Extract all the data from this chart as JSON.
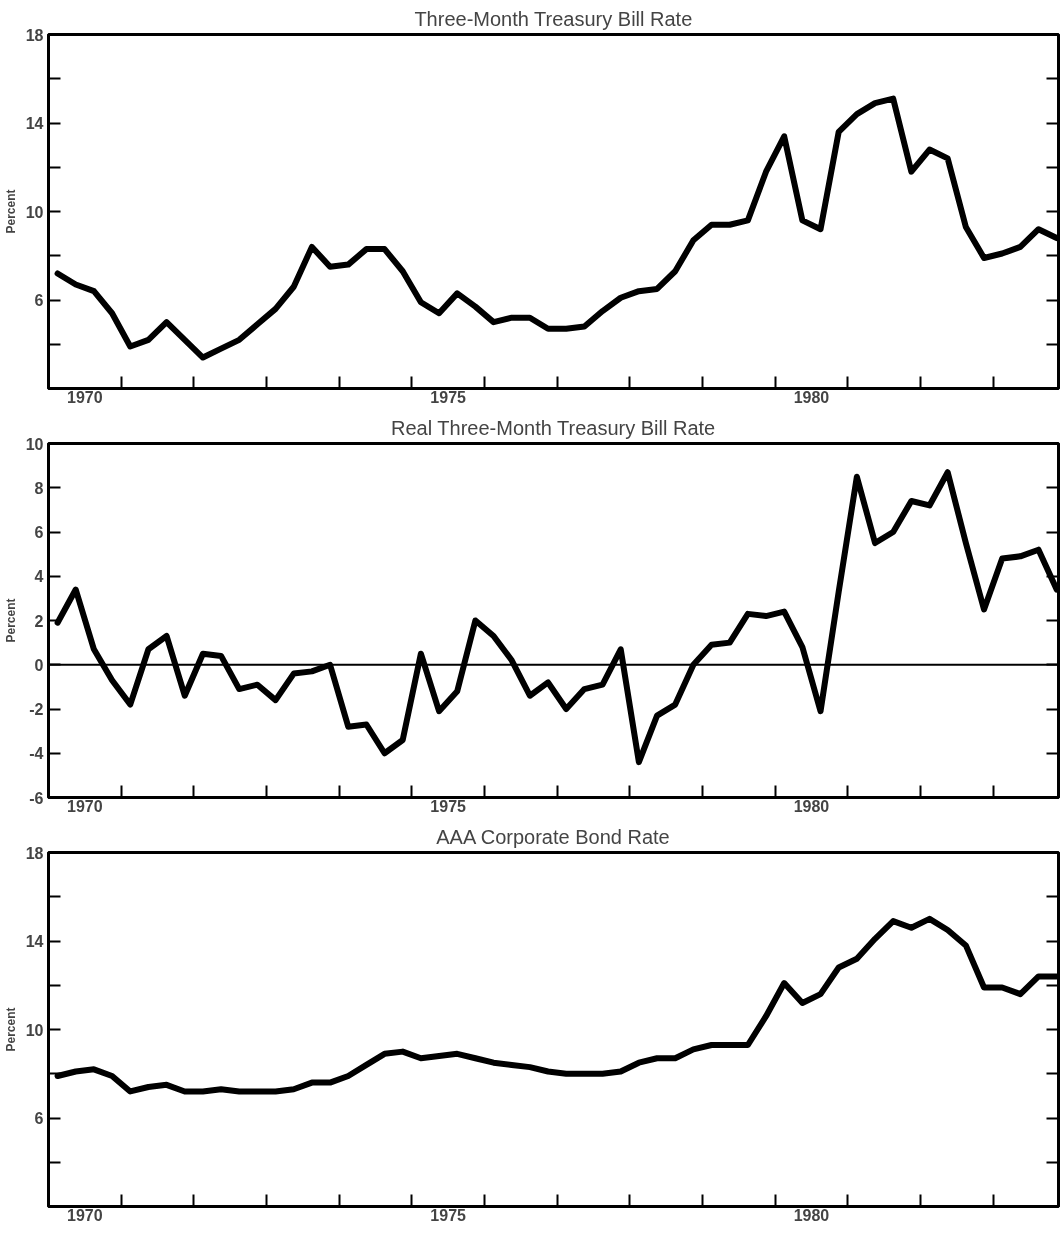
{
  "chart_data": [
    {
      "type": "line",
      "title": "Three-Month Treasury Bill Rate",
      "ylabel": "Percent",
      "x": [
        1970.125,
        1970.375,
        1970.625,
        1970.875,
        1971.125,
        1971.375,
        1971.625,
        1971.875,
        1972.125,
        1972.375,
        1972.625,
        1972.875,
        1973.125,
        1973.375,
        1973.625,
        1973.875,
        1974.125,
        1974.375,
        1974.625,
        1974.875,
        1975.125,
        1975.375,
        1975.625,
        1975.875,
        1976.125,
        1976.375,
        1976.625,
        1976.875,
        1977.125,
        1977.375,
        1977.625,
        1977.875,
        1978.125,
        1978.375,
        1978.625,
        1978.875,
        1979.125,
        1979.375,
        1979.625,
        1979.875,
        1980.125,
        1980.375,
        1980.625,
        1980.875,
        1981.125,
        1981.375,
        1981.625,
        1981.875,
        1982.125,
        1982.375,
        1982.625,
        1982.875,
        1983.125,
        1983.375,
        1983.625,
        1983.875
      ],
      "series": [
        {
          "color": "#000000",
          "values": [
            7.2,
            6.7,
            6.4,
            5.4,
            3.9,
            4.2,
            5.0,
            4.2,
            3.4,
            3.8,
            4.2,
            4.9,
            5.6,
            6.6,
            8.4,
            7.5,
            7.6,
            8.3,
            8.3,
            7.3,
            5.9,
            5.4,
            6.3,
            5.7,
            5.0,
            5.2,
            5.2,
            4.7,
            4.7,
            4.8,
            5.5,
            6.1,
            6.4,
            6.5,
            7.3,
            8.7,
            9.4,
            9.4,
            9.6,
            11.8,
            13.4,
            9.6,
            9.2,
            13.6,
            14.4,
            14.9,
            15.1,
            11.8,
            12.8,
            12.4,
            9.3,
            7.9,
            8.1,
            8.4,
            9.2,
            8.8
          ]
        }
      ],
      "xlim": [
        1970,
        1983.9
      ],
      "xticks": [
        {
          "value": 1970.5,
          "label": "1970"
        },
        {
          "value": 1971,
          "label": null
        },
        {
          "value": 1972,
          "label": null
        },
        {
          "value": 1973,
          "label": null
        },
        {
          "value": 1974,
          "label": null
        },
        {
          "value": 1975,
          "label": null
        },
        {
          "value": 1975.5,
          "label": "1975"
        },
        {
          "value": 1976,
          "label": null
        },
        {
          "value": 1977,
          "label": null
        },
        {
          "value": 1978,
          "label": null
        },
        {
          "value": 1979,
          "label": null
        },
        {
          "value": 1980,
          "label": null
        },
        {
          "value": 1980.5,
          "label": "1980"
        },
        {
          "value": 1981,
          "label": null
        },
        {
          "value": 1982,
          "label": null
        },
        {
          "value": 1983,
          "label": null
        }
      ],
      "ylim": [
        2,
        18
      ],
      "yticks": [
        {
          "value": 4,
          "label": null
        },
        6,
        {
          "value": 8,
          "label": null
        },
        10,
        {
          "value": 12,
          "label": null
        },
        14,
        {
          "value": 16,
          "label": null
        },
        18
      ]
    },
    {
      "type": "line",
      "title": "Real Three-Month Treasury Bill Rate",
      "ylabel": "Percent",
      "x": [
        1970.125,
        1970.375,
        1970.625,
        1970.875,
        1971.125,
        1971.375,
        1971.625,
        1971.875,
        1972.125,
        1972.375,
        1972.625,
        1972.875,
        1973.125,
        1973.375,
        1973.625,
        1973.875,
        1974.125,
        1974.375,
        1974.625,
        1974.875,
        1975.125,
        1975.375,
        1975.625,
        1975.875,
        1976.125,
        1976.375,
        1976.625,
        1976.875,
        1977.125,
        1977.375,
        1977.625,
        1977.875,
        1978.125,
        1978.375,
        1978.625,
        1978.875,
        1979.125,
        1979.375,
        1979.625,
        1979.875,
        1980.125,
        1980.375,
        1980.625,
        1980.875,
        1981.125,
        1981.375,
        1981.625,
        1981.875,
        1982.125,
        1982.375,
        1982.625,
        1982.875,
        1983.125,
        1983.375,
        1983.625,
        1983.875
      ],
      "series": [
        {
          "color": "#000000",
          "values": [
            1.9,
            3.4,
            0.7,
            -0.7,
            -1.8,
            0.7,
            1.3,
            -1.4,
            0.5,
            0.4,
            -1.1,
            -0.9,
            -1.6,
            -0.4,
            -0.3,
            0,
            -2.8,
            -2.7,
            -4.0,
            -3.4,
            0.5,
            -2.1,
            -1.2,
            2.0,
            1.3,
            0.2,
            -1.4,
            -0.8,
            -2.0,
            -1.1,
            -0.9,
            0.7,
            -4.4,
            -2.3,
            -1.8,
            0,
            0.9,
            1.0,
            2.3,
            2.2,
            2.4,
            0.8,
            -2.1,
            3.3,
            8.5,
            5.5,
            6.0,
            7.4,
            7.2,
            8.7,
            5.5,
            2.5,
            4.8,
            4.9,
            5.2,
            3.4
          ]
        }
      ],
      "xlim": [
        1970,
        1983.9
      ],
      "xticks": [
        {
          "value": 1970.5,
          "label": "1970"
        },
        {
          "value": 1971,
          "label": null
        },
        {
          "value": 1972,
          "label": null
        },
        {
          "value": 1973,
          "label": null
        },
        {
          "value": 1974,
          "label": null
        },
        {
          "value": 1975,
          "label": null
        },
        {
          "value": 1975.5,
          "label": "1975"
        },
        {
          "value": 1976,
          "label": null
        },
        {
          "value": 1977,
          "label": null
        },
        {
          "value": 1978,
          "label": null
        },
        {
          "value": 1979,
          "label": null
        },
        {
          "value": 1980,
          "label": null
        },
        {
          "value": 1980.5,
          "label": "1980"
        },
        {
          "value": 1981,
          "label": null
        },
        {
          "value": 1982,
          "label": null
        },
        {
          "value": 1983,
          "label": null
        }
      ],
      "ylim": [
        -6,
        10
      ],
      "yticks": [
        -6,
        -4,
        -2,
        0,
        2,
        4,
        6,
        8,
        10
      ],
      "ref_lines": [
        {
          "axis": "y",
          "value": 0
        }
      ]
    },
    {
      "type": "line",
      "title": "AAA Corporate Bond Rate",
      "ylabel": "Percent",
      "x": [
        1970.125,
        1970.375,
        1970.625,
        1970.875,
        1971.125,
        1971.375,
        1971.625,
        1971.875,
        1972.125,
        1972.375,
        1972.625,
        1972.875,
        1973.125,
        1973.375,
        1973.625,
        1973.875,
        1974.125,
        1974.375,
        1974.625,
        1974.875,
        1975.125,
        1975.375,
        1975.625,
        1975.875,
        1976.125,
        1976.375,
        1976.625,
        1976.875,
        1977.125,
        1977.375,
        1977.625,
        1977.875,
        1978.125,
        1978.375,
        1978.625,
        1978.875,
        1979.125,
        1979.375,
        1979.625,
        1979.875,
        1980.125,
        1980.375,
        1980.625,
        1980.875,
        1981.125,
        1981.375,
        1981.625,
        1981.875,
        1982.125,
        1982.375,
        1982.625,
        1982.875,
        1983.125,
        1983.375,
        1983.625,
        1983.875
      ],
      "series": [
        {
          "color": "#000000",
          "values": [
            7.9,
            8.1,
            8.2,
            7.9,
            7.2,
            7.4,
            7.5,
            7.2,
            7.2,
            7.3,
            7.2,
            7.2,
            7.2,
            7.3,
            7.6,
            7.6,
            7.9,
            8.4,
            8.9,
            9.0,
            8.7,
            8.8,
            8.9,
            8.7,
            8.5,
            8.4,
            8.3,
            8.1,
            8.0,
            8.0,
            8.0,
            8.1,
            8.5,
            8.7,
            8.7,
            9.1,
            9.3,
            9.3,
            9.3,
            10.6,
            12.1,
            11.2,
            11.6,
            12.8,
            13.2,
            14.1,
            14.9,
            14.6,
            15.0,
            14.5,
            13.8,
            11.9,
            11.9,
            11.6,
            12.4,
            12.4
          ]
        }
      ],
      "xlim": [
        1970,
        1983.9
      ],
      "xticks": [
        {
          "value": 1970.5,
          "label": "1970"
        },
        {
          "value": 1971,
          "label": null
        },
        {
          "value": 1972,
          "label": null
        },
        {
          "value": 1973,
          "label": null
        },
        {
          "value": 1974,
          "label": null
        },
        {
          "value": 1975,
          "label": null
        },
        {
          "value": 1975.5,
          "label": "1975"
        },
        {
          "value": 1976,
          "label": null
        },
        {
          "value": 1977,
          "label": null
        },
        {
          "value": 1978,
          "label": null
        },
        {
          "value": 1979,
          "label": null
        },
        {
          "value": 1980,
          "label": null
        },
        {
          "value": 1980.5,
          "label": "1980"
        },
        {
          "value": 1981,
          "label": null
        },
        {
          "value": 1982,
          "label": null
        },
        {
          "value": 1983,
          "label": null
        }
      ],
      "ylim": [
        2,
        18
      ],
      "yticks": [
        {
          "value": 4,
          "label": null
        },
        6,
        {
          "value": 8,
          "label": null
        },
        10,
        {
          "value": 12,
          "label": null
        },
        14,
        {
          "value": 16,
          "label": null
        },
        18
      ]
    }
  ]
}
